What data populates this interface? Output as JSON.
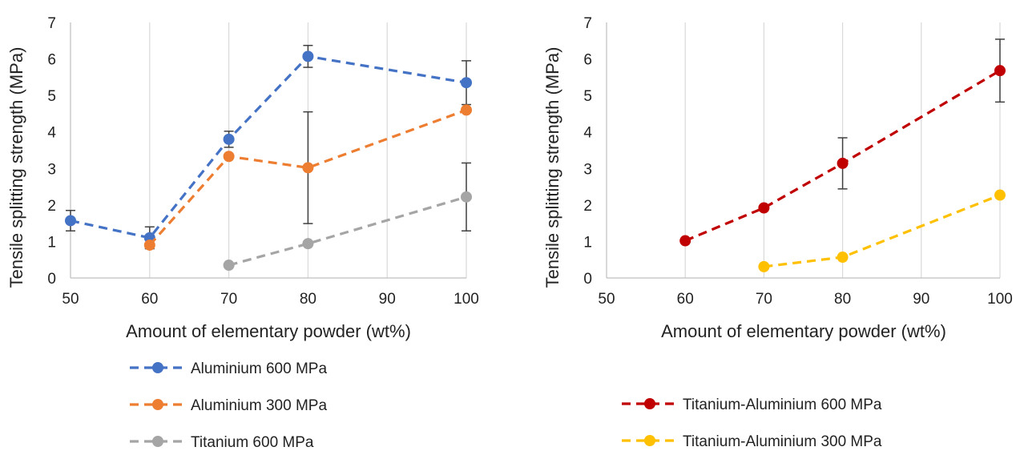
{
  "chart_data": [
    {
      "type": "line",
      "xlabel": "Amount of elementary powder (wt%)",
      "ylabel": "Tensile splitting strength (MPa)",
      "xlim": [
        50,
        100
      ],
      "ylim": [
        0,
        7
      ],
      "xticks": [
        50,
        60,
        70,
        80,
        90,
        100
      ],
      "yticks": [
        0,
        1,
        2,
        3,
        4,
        5,
        6,
        7
      ],
      "grid": "vertical",
      "legend": "bottom",
      "series": [
        {
          "name": "Aluminium 600 MPa",
          "color": "#4472C4",
          "x": [
            50,
            60,
            70,
            80,
            100
          ],
          "y": [
            1.57,
            1.1,
            3.8,
            6.07,
            5.35
          ],
          "error": [
            0.28,
            0.3,
            0.22,
            0.3,
            0.6
          ]
        },
        {
          "name": "Aluminium 300 MPa",
          "color": "#ED7D31",
          "x": [
            60,
            70,
            80,
            100
          ],
          "y": [
            0.9,
            3.33,
            3.02,
            4.6
          ],
          "error": [
            0,
            0,
            1.53,
            0
          ]
        },
        {
          "name": "Titanium 600 MPa",
          "color": "#A5A5A5",
          "x": [
            70,
            80,
            100
          ],
          "y": [
            0.35,
            0.94,
            2.22
          ],
          "error": [
            0,
            0,
            0.93
          ]
        }
      ]
    },
    {
      "type": "line",
      "xlabel": "Amount of elementary powder (wt%)",
      "ylabel": "Tensile splitting strength (MPa)",
      "xlim": [
        50,
        100
      ],
      "ylim": [
        0,
        7
      ],
      "xticks": [
        50,
        60,
        70,
        80,
        90,
        100
      ],
      "yticks": [
        0,
        1,
        2,
        3,
        4,
        5,
        6,
        7
      ],
      "grid": "vertical",
      "legend": "bottom",
      "series": [
        {
          "name": "Titanium-Aluminium 600 MPa",
          "color": "#C00000",
          "x": [
            60,
            70,
            80,
            100
          ],
          "y": [
            1.02,
            1.92,
            3.14,
            5.68
          ],
          "error": [
            0,
            0,
            0.7,
            0.86
          ]
        },
        {
          "name": "Titanium-Aluminium 300 MPa",
          "color": "#FFC000",
          "x": [
            70,
            80,
            100
          ],
          "y": [
            0.31,
            0.57,
            2.27
          ],
          "error": [
            0,
            0,
            0
          ]
        }
      ]
    }
  ]
}
